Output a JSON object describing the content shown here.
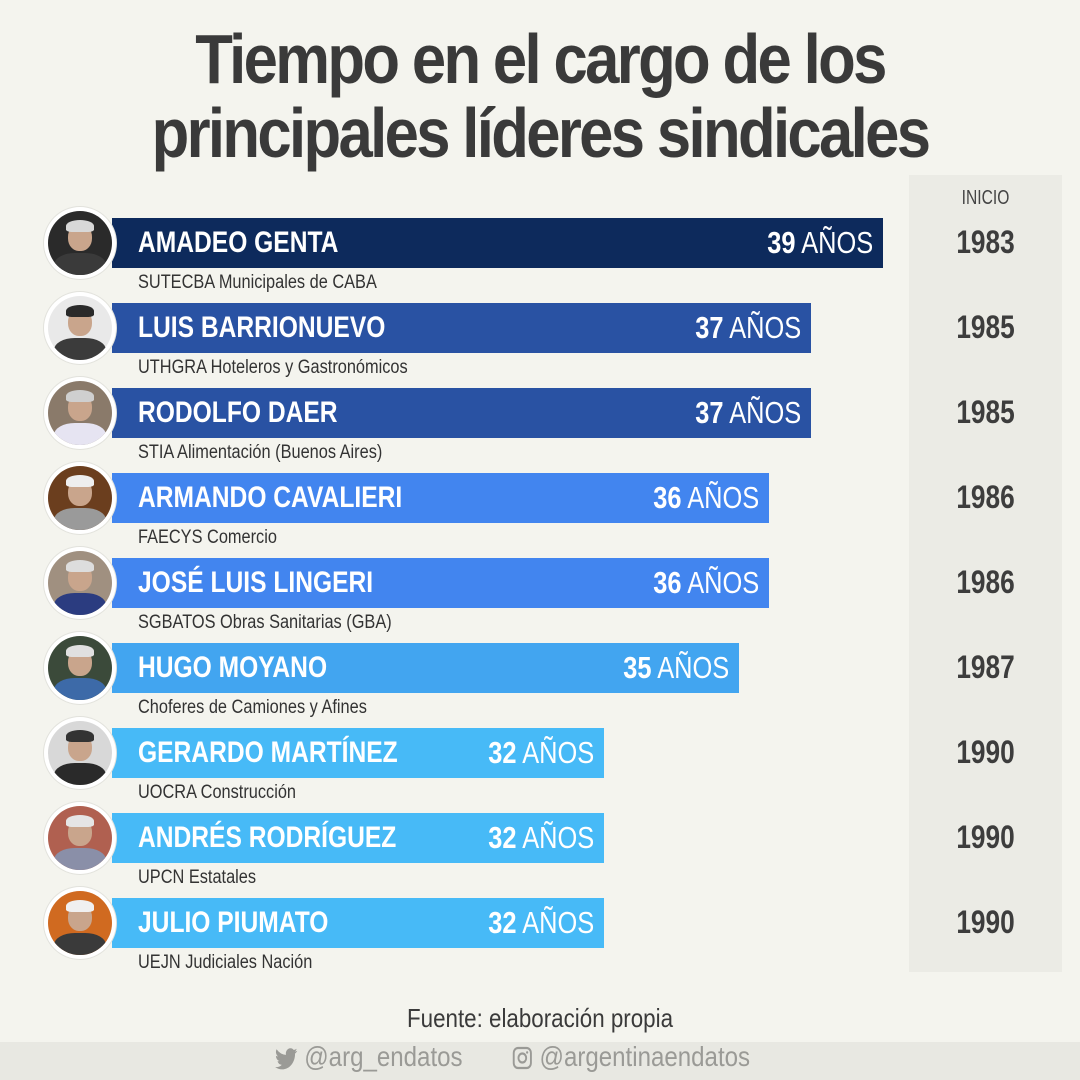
{
  "title": {
    "line1": "Tiempo en el cargo de los",
    "line2": "principales líderes sindicales"
  },
  "inicio_header": "INICIO",
  "years_unit": "AÑOS",
  "leaders": [
    {
      "name": "AMADEO GENTA",
      "union": "SUTECBA Municipales de CABA",
      "years": "39",
      "start": "1983",
      "color": "#0d2a5c",
      "bar_end": 883
    },
    {
      "name": "LUIS BARRIONUEVO",
      "union": "UTHGRA Hoteleros y Gastronómicos",
      "years": "37",
      "start": "1985",
      "color": "#2952a3",
      "bar_end": 811
    },
    {
      "name": "RODOLFO DAER",
      "union": "STIA Alimentación (Buenos Aires)",
      "years": "37",
      "start": "1985",
      "color": "#2952a3",
      "bar_end": 811
    },
    {
      "name": "ARMANDO CAVALIERI",
      "union": "FAECYS Comercio",
      "years": "36",
      "start": "1986",
      "color": "#4285ef",
      "bar_end": 769
    },
    {
      "name": "JOSÉ LUIS LINGERI",
      "union": "SGBATOS Obras Sanitarias (GBA)",
      "years": "36",
      "start": "1986",
      "color": "#4285ef",
      "bar_end": 769
    },
    {
      "name": "HUGO MOYANO",
      "union": "Choferes de Camiones y Afines",
      "years": "35",
      "start": "1987",
      "color": "#42a5f0",
      "bar_end": 739
    },
    {
      "name": "GERARDO MARTÍNEZ",
      "union": "UOCRA Construcción",
      "years": "32",
      "start": "1990",
      "color": "#47baf7",
      "bar_end": 604
    },
    {
      "name": "ANDRÉS RODRÍGUEZ",
      "union": "UPCN Estatales",
      "years": "32",
      "start": "1990",
      "color": "#47baf7",
      "bar_end": 604
    },
    {
      "name": "JULIO PIUMATO",
      "union": "UEJN Judiciales Nación",
      "years": "32",
      "start": "1990",
      "color": "#47baf7",
      "bar_end": 604
    }
  ],
  "source": "Fuente: elaboración propia",
  "social": {
    "twitter": "@arg_endatos",
    "instagram": "@argentinaendatos"
  },
  "chart_data": {
    "type": "bar",
    "orientation": "horizontal",
    "title": "Tiempo en el cargo de los principales líderes sindicales",
    "categories": [
      "AMADEO GENTA",
      "LUIS BARRIONUEVO",
      "RODOLFO DAER",
      "ARMANDO CAVALIERI",
      "JOSÉ LUIS LINGERI",
      "HUGO MOYANO",
      "GERARDO MARTÍNEZ",
      "ANDRÉS RODRÍGUEZ",
      "JULIO PIUMATO"
    ],
    "subcategories": [
      "SUTECBA Municipales de CABA",
      "UTHGRA Hoteleros y Gastronómicos",
      "STIA Alimentación (Buenos Aires)",
      "FAECYS Comercio",
      "SGBATOS Obras Sanitarias (GBA)",
      "Choferes de Camiones y Afines",
      "UOCRA Construcción",
      "UPCN Estatales",
      "UEJN Judiciales Nación"
    ],
    "values": [
      39,
      37,
      37,
      36,
      36,
      35,
      32,
      32,
      32
    ],
    "value_unit": "AÑOS",
    "start_year": [
      1983,
      1985,
      1985,
      1986,
      1986,
      1987,
      1990,
      1990,
      1990
    ],
    "start_year_label": "INICIO",
    "xlabel": "",
    "ylabel": "",
    "grid": false,
    "legend": null,
    "annotation": "Fuente: elaboración propia"
  }
}
